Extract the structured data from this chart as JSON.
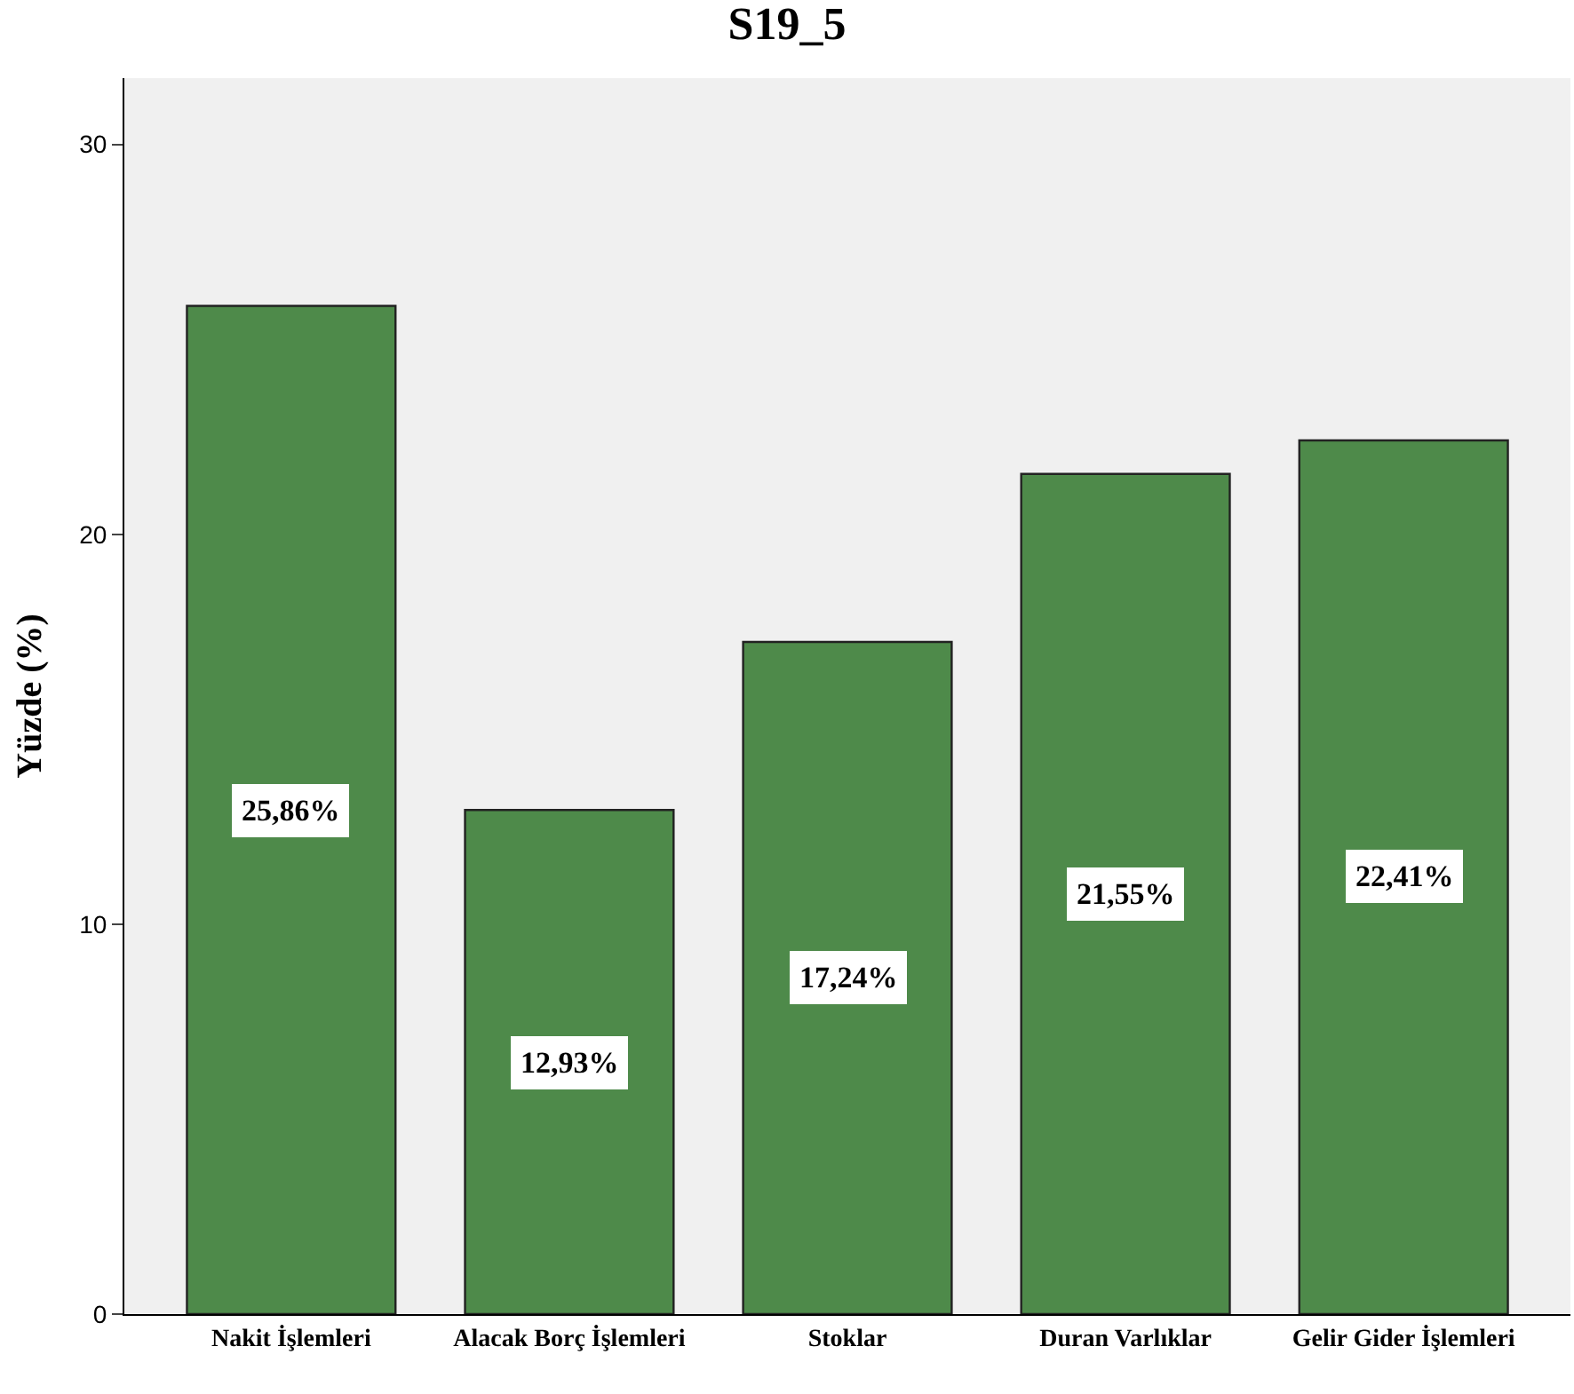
{
  "chart_data": {
    "type": "bar",
    "title": "S19_5",
    "ylabel": "Yüzde (%)",
    "categories": [
      "Nakit İşlemleri",
      "Alacak Borç İşlemleri",
      "Stoklar",
      "Duran Varlıklar",
      "Gelir Gider İşlemleri"
    ],
    "values": [
      25.86,
      12.93,
      17.24,
      21.55,
      22.41
    ],
    "value_labels": [
      "25,86%",
      "12,93%",
      "17,24%",
      "21,55%",
      "22,41%"
    ],
    "color": "#4e8a4a",
    "ylim": [
      0,
      31.7
    ],
    "yticks": [
      0,
      10,
      20,
      30
    ],
    "grid": false,
    "legend": false
  }
}
